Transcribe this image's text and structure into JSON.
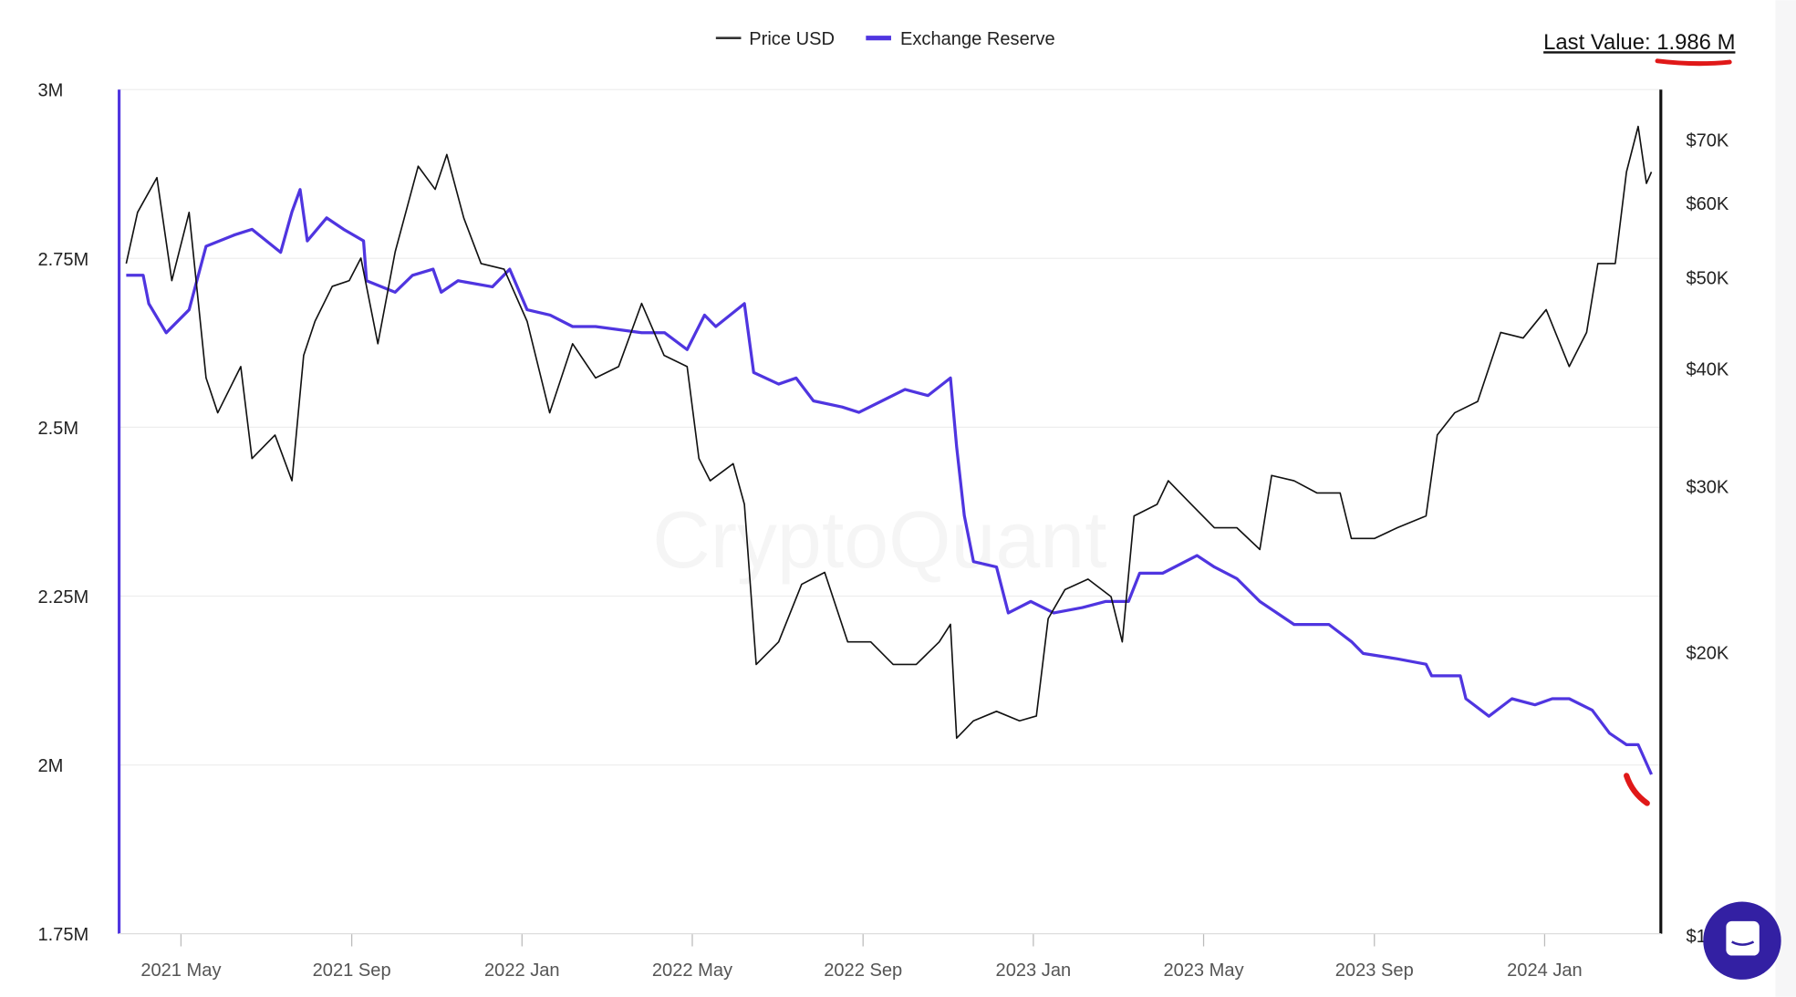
{
  "chart_data": {
    "type": "line",
    "title": "",
    "legend": [
      "Price USD",
      "Exchange Reserve"
    ],
    "legend_position": "top-center",
    "last_value_label": "Last Value: 1.986 M",
    "watermark": "CryptoQuant",
    "x_unit": "decimal year",
    "x_ticks": [
      {
        "t": 2021.333,
        "label": "2021 May"
      },
      {
        "t": 2021.667,
        "label": "2021 Sep"
      },
      {
        "t": 2022.0,
        "label": "2022 Jan"
      },
      {
        "t": 2022.333,
        "label": "2022 May"
      },
      {
        "t": 2022.667,
        "label": "2022 Sep"
      },
      {
        "t": 2023.0,
        "label": "2023 Jan"
      },
      {
        "t": 2023.333,
        "label": "2023 May"
      },
      {
        "t": 2023.667,
        "label": "2023 Sep"
      },
      {
        "t": 2024.0,
        "label": "2024 Jan"
      }
    ],
    "left_axis": {
      "label": "Exchange Reserve",
      "ylim": [
        1.75,
        3.0
      ],
      "unit": "M",
      "ticks": [
        {
          "v": 3.0,
          "label": "3M"
        },
        {
          "v": 2.75,
          "label": "2.75M"
        },
        {
          "v": 2.5,
          "label": "2.5M"
        },
        {
          "v": 2.25,
          "label": "2.25M"
        },
        {
          "v": 2.0,
          "label": "2M"
        },
        {
          "v": 1.75,
          "label": "1.75M"
        }
      ]
    },
    "right_axis": {
      "label": "Price USD",
      "scale": "log",
      "ylim": [
        10,
        80
      ],
      "unit": "K USD",
      "ticks": [
        {
          "v": 70,
          "label": "$70K"
        },
        {
          "v": 60,
          "label": "$60K"
        },
        {
          "v": 50,
          "label": "$50K"
        },
        {
          "v": 40,
          "label": "$40K"
        },
        {
          "v": 30,
          "label": "$30K"
        },
        {
          "v": 20,
          "label": "$20K"
        },
        {
          "v": 10,
          "label": "$10K"
        }
      ]
    },
    "grid": true,
    "series": [
      {
        "name": "Exchange Reserve",
        "axis": "left",
        "color": "#4f35e0",
        "t": [
          2021.226,
          2021.259,
          2021.27,
          2021.304,
          2021.349,
          2021.382,
          2021.438,
          2021.472,
          2021.528,
          2021.55,
          2021.566,
          2021.58,
          2021.618,
          2021.651,
          2021.69,
          2021.696,
          2021.752,
          2021.786,
          2021.826,
          2021.842,
          2021.875,
          2021.942,
          2021.976,
          2022.01,
          2022.055,
          2022.099,
          2022.144,
          2022.234,
          2022.279,
          2022.323,
          2022.357,
          2022.379,
          2022.435,
          2022.453,
          2022.502,
          2022.536,
          2022.57,
          2022.626,
          2022.659,
          2022.704,
          2022.749,
          2022.794,
          2022.838,
          2022.85,
          2022.865,
          2022.883,
          2022.928,
          2022.951,
          2022.995,
          2023.04,
          2023.096,
          2023.141,
          2023.186,
          2023.208,
          2023.253,
          2023.32,
          2023.354,
          2023.398,
          2023.443,
          2023.51,
          2023.578,
          2023.623,
          2023.645,
          2023.712,
          2023.768,
          2023.779,
          2023.835,
          2023.846,
          2023.891,
          2023.936,
          2023.981,
          2024.015,
          2024.048,
          2024.093,
          2024.127,
          2024.16,
          2024.183,
          2024.209
        ],
        "values": [
          2.725,
          2.725,
          2.683,
          2.64,
          2.674,
          2.768,
          2.785,
          2.793,
          2.759,
          2.819,
          2.852,
          2.776,
          2.81,
          2.793,
          2.776,
          2.717,
          2.7,
          2.725,
          2.734,
          2.7,
          2.717,
          2.708,
          2.734,
          2.674,
          2.666,
          2.649,
          2.649,
          2.64,
          2.64,
          2.615,
          2.666,
          2.649,
          2.683,
          2.581,
          2.564,
          2.573,
          2.539,
          2.53,
          2.522,
          2.539,
          2.556,
          2.547,
          2.573,
          2.471,
          2.369,
          2.301,
          2.293,
          2.225,
          2.242,
          2.225,
          2.233,
          2.242,
          2.242,
          2.284,
          2.284,
          2.31,
          2.293,
          2.276,
          2.242,
          2.208,
          2.208,
          2.182,
          2.165,
          2.157,
          2.149,
          2.132,
          2.132,
          2.098,
          2.072,
          2.098,
          2.089,
          2.098,
          2.098,
          2.081,
          2.047,
          2.03,
          2.03,
          1.986
        ]
      },
      {
        "name": "Price USD",
        "axis": "right",
        "color": "#111111",
        "t": [
          2021.226,
          2021.248,
          2021.286,
          2021.315,
          2021.349,
          2021.382,
          2021.405,
          2021.45,
          2021.472,
          2021.517,
          2021.55,
          2021.573,
          2021.595,
          2021.629,
          2021.662,
          2021.685,
          2021.718,
          2021.752,
          2021.797,
          2021.83,
          2021.853,
          2021.886,
          2021.92,
          2021.965,
          2022.01,
          2022.054,
          2022.099,
          2022.144,
          2022.189,
          2022.234,
          2022.278,
          2022.323,
          2022.346,
          2022.368,
          2022.413,
          2022.435,
          2022.458,
          2022.502,
          2022.547,
          2022.592,
          2022.637,
          2022.682,
          2022.726,
          2022.771,
          2022.816,
          2022.838,
          2022.85,
          2022.883,
          2022.928,
          2022.973,
          2023.006,
          2023.029,
          2023.062,
          2023.107,
          2023.152,
          2023.174,
          2023.197,
          2023.242,
          2023.264,
          2023.309,
          2023.354,
          2023.398,
          2023.443,
          2023.466,
          2023.51,
          2023.555,
          2023.6,
          2023.622,
          2023.667,
          2023.712,
          2023.768,
          2023.79,
          2023.824,
          2023.869,
          2023.914,
          2023.958,
          2024.003,
          2024.048,
          2024.082,
          2024.104,
          2024.138,
          2024.16,
          2024.183,
          2024.199,
          2024.209
        ],
        "values": [
          51.7,
          58.6,
          63.8,
          49.6,
          58.6,
          39.1,
          35.9,
          40.2,
          32.1,
          34.0,
          30.4,
          41.3,
          44.9,
          48.9,
          49.6,
          52.4,
          42.5,
          53.2,
          65.6,
          62.0,
          67.5,
          57.8,
          51.7,
          51.0,
          44.9,
          35.9,
          42.5,
          39.1,
          40.2,
          46.9,
          41.3,
          40.2,
          32.1,
          30.4,
          31.7,
          28.7,
          19.4,
          20.5,
          23.6,
          24.3,
          20.5,
          20.5,
          19.4,
          19.4,
          20.5,
          21.4,
          16.2,
          16.9,
          17.3,
          16.9,
          17.1,
          21.7,
          23.3,
          23.9,
          22.9,
          20.5,
          27.9,
          28.7,
          30.4,
          28.7,
          27.1,
          27.1,
          25.7,
          30.8,
          30.4,
          29.5,
          29.5,
          26.4,
          26.4,
          27.1,
          27.9,
          34.0,
          35.9,
          36.9,
          43.7,
          43.1,
          46.2,
          40.2,
          43.7,
          51.7,
          51.7,
          64.7,
          72.3,
          62.9,
          64.7
        ]
      }
    ]
  }
}
